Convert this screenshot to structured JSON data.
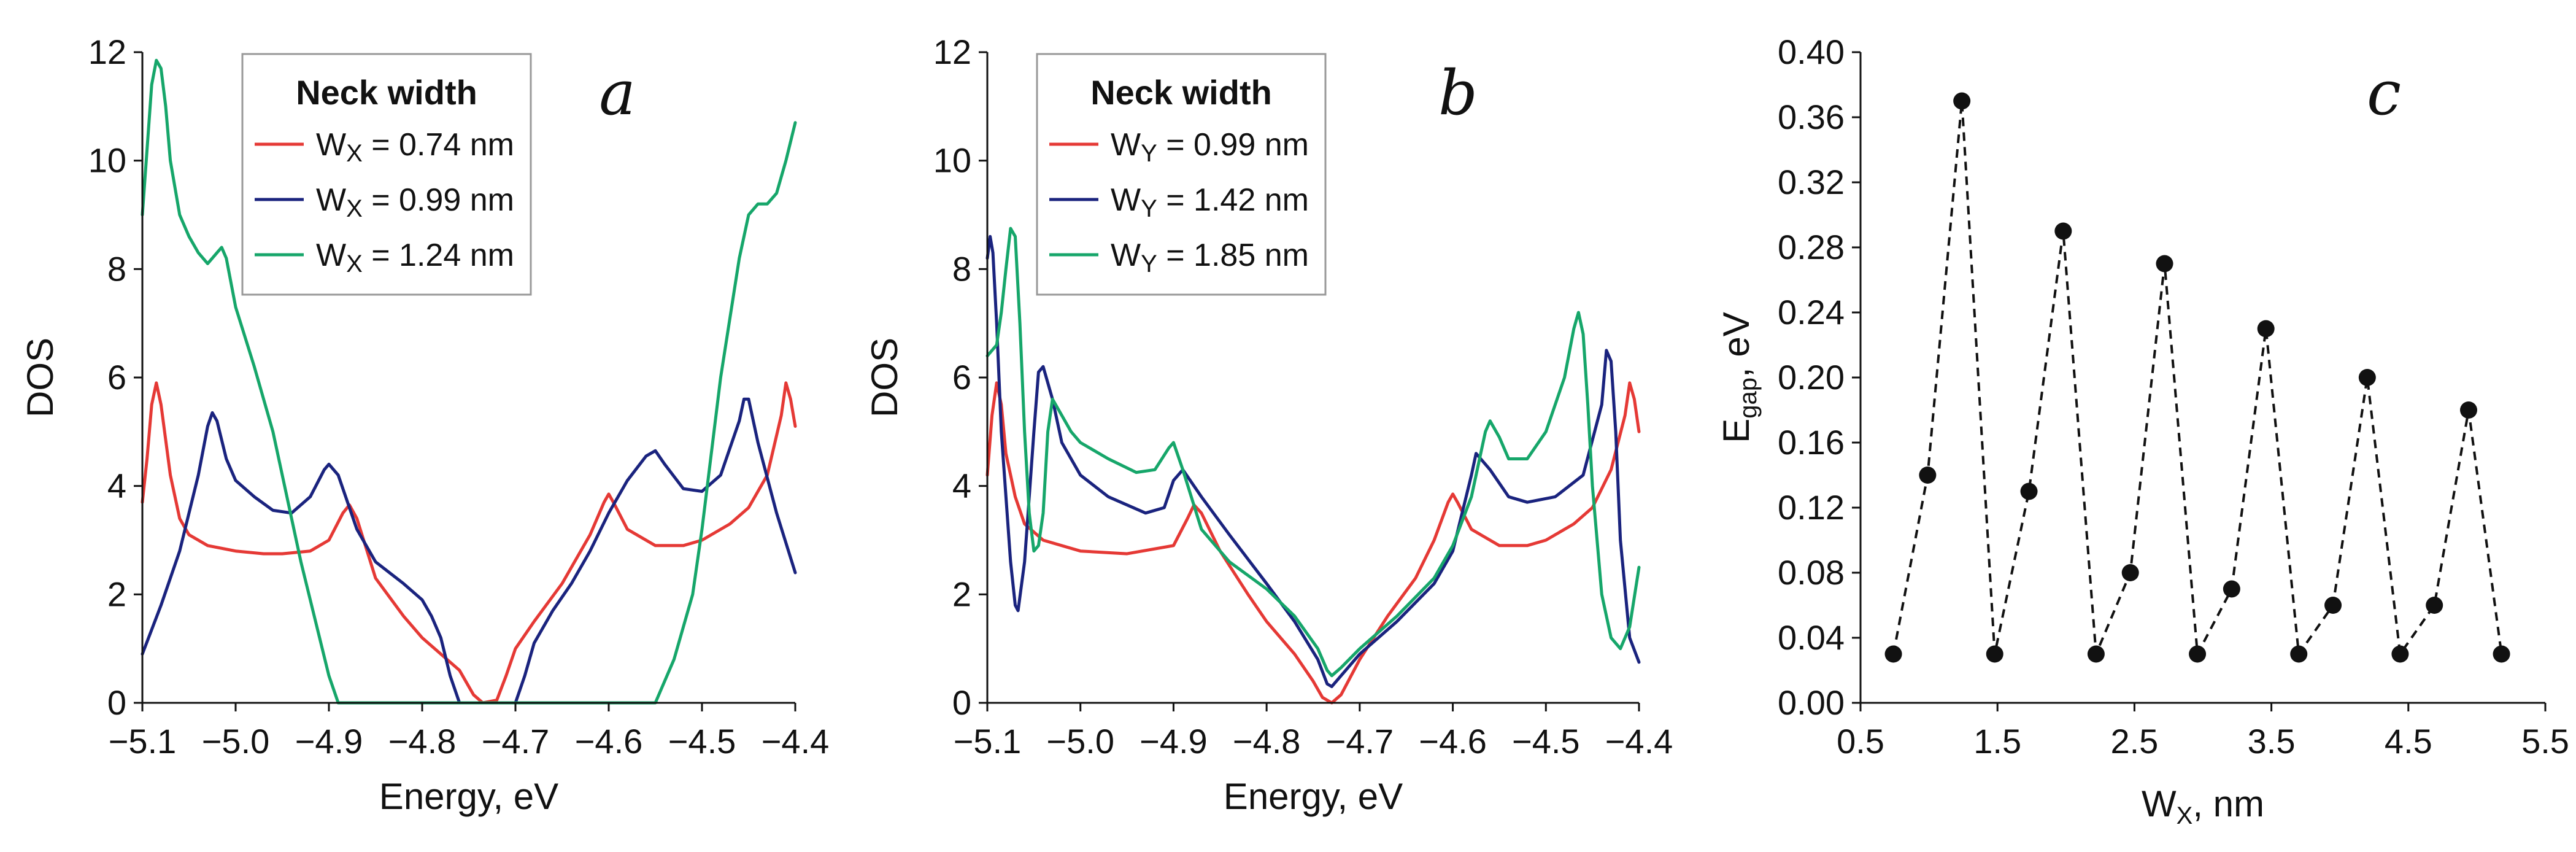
{
  "chart_data": [
    {
      "type": "line",
      "panel_label": "a",
      "xlabel": "Energy, eV",
      "ylabel": "DOS",
      "xlim": [
        -5.1,
        -4.4
      ],
      "ylim": [
        0,
        12
      ],
      "xticks": [
        "−5.1",
        "−5.0",
        "−4.9",
        "−4.8",
        "−4.7",
        "−4.6",
        "−4.5",
        "−4.4"
      ],
      "yticks": [
        "0",
        "2",
        "4",
        "6",
        "8",
        "10",
        "12"
      ],
      "legend": {
        "title": "Neck width",
        "position": "top-left",
        "entries": [
          {
            "var": "W",
            "sub": "X",
            "value": " = 0.74 nm"
          },
          {
            "var": "W",
            "sub": "X",
            "value": " = 0.99 nm"
          },
          {
            "var": "W",
            "sub": "X",
            "value": " = 1.24 nm"
          }
        ]
      },
      "series": [
        {
          "name": "W_X = 0.74 nm",
          "color": "#e53935",
          "x": [
            -5.1,
            -5.095,
            -5.09,
            -5.085,
            -5.08,
            -5.07,
            -5.06,
            -5.05,
            -5.03,
            -5.0,
            -4.97,
            -4.95,
            -4.92,
            -4.9,
            -4.885,
            -4.878,
            -4.87,
            -4.85,
            -4.82,
            -4.8,
            -4.78,
            -4.76,
            -4.745,
            -4.735,
            -4.72,
            -4.71,
            -4.7,
            -4.68,
            -4.65,
            -4.62,
            -4.605,
            -4.6,
            -4.595,
            -4.58,
            -4.55,
            -4.52,
            -4.5,
            -4.47,
            -4.45,
            -4.43,
            -4.415,
            -4.41,
            -4.405,
            -4.4
          ],
          "y": [
            3.7,
            4.5,
            5.5,
            5.9,
            5.5,
            4.2,
            3.4,
            3.1,
            2.9,
            2.8,
            2.75,
            2.75,
            2.8,
            3.0,
            3.5,
            3.65,
            3.4,
            2.3,
            1.6,
            1.2,
            0.9,
            0.6,
            0.15,
            0.0,
            0.05,
            0.5,
            1.0,
            1.5,
            2.2,
            3.1,
            3.7,
            3.85,
            3.7,
            3.2,
            2.9,
            2.9,
            3.0,
            3.3,
            3.6,
            4.2,
            5.3,
            5.9,
            5.6,
            5.1
          ]
        },
        {
          "name": "W_X = 0.99 nm",
          "color": "#1a237e",
          "x": [
            -5.1,
            -5.08,
            -5.06,
            -5.04,
            -5.03,
            -5.025,
            -5.02,
            -5.01,
            -5.0,
            -4.98,
            -4.96,
            -4.94,
            -4.92,
            -4.905,
            -4.9,
            -4.89,
            -4.88,
            -4.87,
            -4.85,
            -4.82,
            -4.8,
            -4.79,
            -4.78,
            -4.77,
            -4.76,
            -4.74,
            -4.72,
            -4.7,
            -4.69,
            -4.68,
            -4.66,
            -4.64,
            -4.62,
            -4.6,
            -4.58,
            -4.56,
            -4.55,
            -4.54,
            -4.52,
            -4.5,
            -4.48,
            -4.46,
            -4.455,
            -4.45,
            -4.44,
            -4.42,
            -4.4
          ],
          "y": [
            0.9,
            1.8,
            2.8,
            4.2,
            5.1,
            5.35,
            5.2,
            4.5,
            4.1,
            3.8,
            3.55,
            3.5,
            3.8,
            4.3,
            4.4,
            4.2,
            3.7,
            3.2,
            2.6,
            2.2,
            1.9,
            1.6,
            1.2,
            0.5,
            0.0,
            0.0,
            0.0,
            0.0,
            0.5,
            1.1,
            1.7,
            2.2,
            2.8,
            3.5,
            4.1,
            4.55,
            4.65,
            4.4,
            3.95,
            3.9,
            4.2,
            5.2,
            5.6,
            5.6,
            4.8,
            3.5,
            2.4
          ]
        },
        {
          "name": "W_X = 1.24 nm",
          "color": "#16a66a",
          "x": [
            -5.1,
            -5.095,
            -5.09,
            -5.085,
            -5.08,
            -5.075,
            -5.07,
            -5.06,
            -5.05,
            -5.04,
            -5.03,
            -5.02,
            -5.015,
            -5.01,
            -5.0,
            -4.98,
            -4.96,
            -4.94,
            -4.93,
            -4.92,
            -4.91,
            -4.9,
            -4.89,
            -4.8,
            -4.7,
            -4.6,
            -4.55,
            -4.545,
            -4.53,
            -4.52,
            -4.51,
            -4.5,
            -4.48,
            -4.46,
            -4.45,
            -4.44,
            -4.43,
            -4.42,
            -4.41,
            -4.4
          ],
          "y": [
            9.0,
            10.2,
            11.4,
            11.85,
            11.7,
            11.0,
            10.0,
            9.0,
            8.6,
            8.3,
            8.1,
            8.3,
            8.4,
            8.2,
            7.3,
            6.2,
            5.0,
            3.4,
            2.6,
            1.9,
            1.2,
            0.5,
            0.0,
            0.0,
            0.0,
            0.0,
            0.0,
            0.2,
            0.8,
            1.4,
            2.0,
            3.2,
            6.0,
            8.2,
            9.0,
            9.2,
            9.2,
            9.4,
            10.0,
            10.7
          ]
        }
      ]
    },
    {
      "type": "line",
      "panel_label": "b",
      "xlabel": "Energy, eV",
      "ylabel": "DOS",
      "xlim": [
        -5.1,
        -4.4
      ],
      "ylim": [
        0,
        12
      ],
      "xticks": [
        "−5.1",
        "−5.0",
        "−4.9",
        "−4.8",
        "−4.7",
        "−4.6",
        "−4.5",
        "−4.4"
      ],
      "yticks": [
        "0",
        "2",
        "4",
        "6",
        "8",
        "10",
        "12"
      ],
      "legend": {
        "title": "Neck width",
        "position": "top-left",
        "entries": [
          {
            "var": "W",
            "sub": "Y",
            "value": " = 0.99 nm"
          },
          {
            "var": "W",
            "sub": "Y",
            "value": " = 1.42 nm"
          },
          {
            "var": "W",
            "sub": "Y",
            "value": " = 1.85 nm"
          }
        ]
      },
      "series": [
        {
          "name": "W_Y = 0.99 nm",
          "color": "#e53935",
          "x": [
            -5.1,
            -5.095,
            -5.09,
            -5.085,
            -5.08,
            -5.07,
            -5.06,
            -5.04,
            -5.0,
            -4.95,
            -4.9,
            -4.885,
            -4.878,
            -4.87,
            -4.85,
            -4.82,
            -4.8,
            -4.77,
            -4.75,
            -4.74,
            -4.73,
            -4.72,
            -4.7,
            -4.67,
            -4.64,
            -4.62,
            -4.605,
            -4.6,
            -4.595,
            -4.58,
            -4.55,
            -4.52,
            -4.5,
            -4.47,
            -4.45,
            -4.43,
            -4.415,
            -4.41,
            -4.405,
            -4.4
          ],
          "y": [
            4.2,
            5.3,
            5.9,
            5.5,
            4.6,
            3.8,
            3.3,
            3.0,
            2.8,
            2.75,
            2.9,
            3.4,
            3.65,
            3.5,
            2.8,
            2.0,
            1.5,
            0.9,
            0.4,
            0.1,
            0.0,
            0.15,
            0.8,
            1.6,
            2.3,
            3.0,
            3.7,
            3.85,
            3.7,
            3.2,
            2.9,
            2.9,
            3.0,
            3.3,
            3.6,
            4.3,
            5.3,
            5.9,
            5.6,
            5.0
          ]
        },
        {
          "name": "W_Y = 1.42 nm",
          "color": "#1a237e",
          "x": [
            -5.1,
            -5.097,
            -5.094,
            -5.09,
            -5.085,
            -5.075,
            -5.07,
            -5.067,
            -5.06,
            -5.05,
            -5.045,
            -5.04,
            -5.03,
            -5.02,
            -5.0,
            -4.97,
            -4.93,
            -4.91,
            -4.9,
            -4.89,
            -4.87,
            -4.84,
            -4.8,
            -4.77,
            -4.745,
            -4.735,
            -4.73,
            -4.72,
            -4.7,
            -4.66,
            -4.62,
            -4.6,
            -4.58,
            -4.575,
            -4.56,
            -4.54,
            -4.52,
            -4.49,
            -4.46,
            -4.44,
            -4.435,
            -4.43,
            -4.425,
            -4.42,
            -4.41,
            -4.4
          ],
          "y": [
            8.2,
            8.6,
            8.3,
            7.0,
            5.0,
            2.6,
            1.8,
            1.7,
            2.6,
            5.0,
            6.1,
            6.2,
            5.6,
            4.8,
            4.2,
            3.8,
            3.5,
            3.6,
            4.1,
            4.3,
            3.8,
            3.1,
            2.2,
            1.5,
            0.8,
            0.35,
            0.3,
            0.5,
            0.9,
            1.5,
            2.2,
            2.8,
            4.2,
            4.6,
            4.3,
            3.8,
            3.7,
            3.8,
            4.2,
            5.5,
            6.5,
            6.3,
            5.0,
            3.0,
            1.2,
            0.75
          ]
        },
        {
          "name": "W_Y = 1.85 nm",
          "color": "#16a66a",
          "x": [
            -5.1,
            -5.09,
            -5.085,
            -5.08,
            -5.075,
            -5.07,
            -5.065,
            -5.06,
            -5.055,
            -5.05,
            -5.045,
            -5.04,
            -5.035,
            -5.03,
            -5.02,
            -5.01,
            -5.0,
            -4.97,
            -4.94,
            -4.92,
            -4.905,
            -4.9,
            -4.89,
            -4.87,
            -4.84,
            -4.8,
            -4.77,
            -4.745,
            -4.735,
            -4.73,
            -4.72,
            -4.7,
            -4.66,
            -4.62,
            -4.6,
            -4.58,
            -4.565,
            -4.56,
            -4.55,
            -4.54,
            -4.52,
            -4.5,
            -4.48,
            -4.47,
            -4.465,
            -4.46,
            -4.455,
            -4.45,
            -4.44,
            -4.43,
            -4.42,
            -4.41,
            -4.4
          ],
          "y": [
            6.4,
            6.6,
            7.2,
            8.0,
            8.75,
            8.6,
            7.0,
            5.0,
            3.5,
            2.8,
            2.9,
            3.5,
            5.0,
            5.6,
            5.3,
            5.0,
            4.8,
            4.5,
            4.25,
            4.3,
            4.7,
            4.8,
            4.3,
            3.2,
            2.6,
            2.1,
            1.6,
            1.0,
            0.6,
            0.5,
            0.65,
            1.0,
            1.6,
            2.3,
            2.9,
            3.8,
            5.0,
            5.2,
            4.9,
            4.5,
            4.5,
            5.0,
            6.0,
            6.9,
            7.2,
            6.8,
            5.5,
            4.0,
            2.0,
            1.2,
            1.0,
            1.4,
            2.5
          ]
        }
      ]
    },
    {
      "type": "scatter",
      "panel_label": "c",
      "xlabel_var": "W",
      "xlabel_sub": "X",
      "xlabel_rest": ", nm",
      "ylabel_var": "E",
      "ylabel_sub": "gap",
      "ylabel_rest": ", eV",
      "xlim": [
        0.5,
        5.5
      ],
      "ylim": [
        0,
        0.4
      ],
      "xtick_values": [
        0.5,
        1.5,
        2.5,
        3.5,
        4.5,
        5.5
      ],
      "xticks": [
        "0.5",
        "1.5",
        "2.5",
        "3.5",
        "4.5",
        "5.5"
      ],
      "ytick_values": [
        0,
        0.04,
        0.08,
        0.12,
        0.16,
        0.2,
        0.24,
        0.28,
        0.32,
        0.36,
        0.4
      ],
      "yticks": [
        "0.00",
        "0.04",
        "0.08",
        "0.12",
        "0.16",
        "0.20",
        "0.24",
        "0.28",
        "0.32",
        "0.36",
        "0.40"
      ],
      "connector": "dashed",
      "x": [
        0.74,
        0.99,
        1.24,
        1.48,
        1.73,
        1.98,
        2.22,
        2.47,
        2.72,
        2.96,
        3.21,
        3.46,
        3.7,
        3.95,
        4.2,
        4.44,
        4.69,
        4.94,
        5.18
      ],
      "y": [
        0.03,
        0.14,
        0.37,
        0.03,
        0.13,
        0.29,
        0.03,
        0.08,
        0.27,
        0.03,
        0.07,
        0.23,
        0.03,
        0.06,
        0.2,
        0.03,
        0.06,
        0.18,
        0.03
      ]
    }
  ]
}
